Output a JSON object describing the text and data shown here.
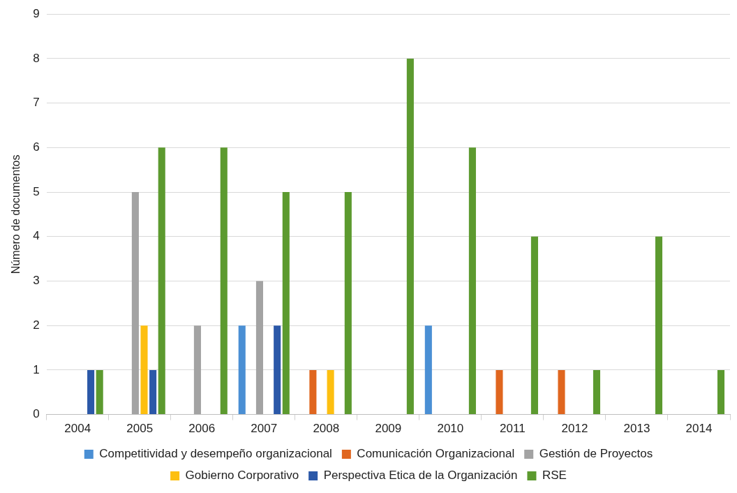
{
  "chart_data": {
    "type": "bar",
    "ylabel": "Número de documentos",
    "categories": [
      "2004",
      "2005",
      "2006",
      "2007",
      "2008",
      "2009",
      "2010",
      "2011",
      "2012",
      "2013",
      "2014"
    ],
    "series": [
      {
        "name": "Competitividad y desempeño organizacional",
        "color": "#4a8fd4",
        "values": [
          null,
          null,
          null,
          2,
          null,
          null,
          2,
          null,
          null,
          null,
          null
        ]
      },
      {
        "name": "Comunicación Organizacional",
        "color": "#e0661f",
        "values": [
          null,
          null,
          null,
          null,
          1,
          null,
          null,
          1,
          1,
          null,
          null
        ]
      },
      {
        "name": "Gestión de Proyectos",
        "color": "#a3a3a3",
        "values": [
          null,
          5,
          2,
          3,
          null,
          null,
          null,
          null,
          null,
          null,
          null
        ]
      },
      {
        "name": "Gobierno Corporativo",
        "color": "#fdbf10",
        "values": [
          null,
          2,
          null,
          null,
          1,
          null,
          null,
          null,
          null,
          null,
          null
        ]
      },
      {
        "name": "Perspectiva Etica de la Organización",
        "color": "#2b58a8",
        "values": [
          1,
          1,
          null,
          2,
          null,
          null,
          null,
          null,
          null,
          null,
          null
        ]
      },
      {
        "name": "RSE",
        "color": "#5c9a2f",
        "values": [
          1,
          6,
          6,
          5,
          5,
          8,
          6,
          4,
          1,
          4,
          1
        ]
      }
    ],
    "ylim": [
      0,
      9
    ],
    "yticks": [
      0,
      1,
      2,
      3,
      4,
      5,
      6,
      7,
      8,
      9
    ],
    "grid": "y",
    "legend": "bottom"
  }
}
